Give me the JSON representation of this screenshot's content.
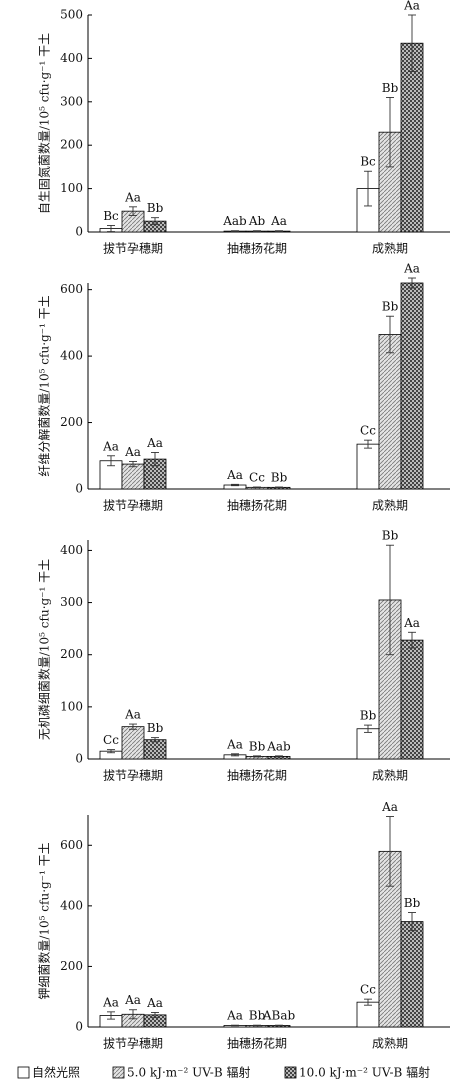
{
  "chart_data": [
    {
      "type": "bar",
      "ylabel": "自生固氮菌数量/10⁵ cfu·g⁻¹ 干土",
      "categories": [
        "拔节孕穗期",
        "抽穗扬花期",
        "成熟期"
      ],
      "ylim": [
        0,
        500
      ],
      "yticks": [
        0,
        100,
        200,
        300,
        400,
        500
      ],
      "series": [
        {
          "values": [
            8,
            2,
            100
          ],
          "errors": [
            7,
            1,
            40
          ],
          "significance": [
            "Bc",
            "Aab",
            "Bc"
          ]
        },
        {
          "values": [
            48,
            2,
            230
          ],
          "errors": [
            10,
            1,
            80
          ],
          "significance": [
            "Aa",
            "Ab",
            "Bb"
          ]
        },
        {
          "values": [
            25,
            2,
            435
          ],
          "errors": [
            8,
            1,
            65
          ],
          "significance": [
            "Bb",
            "Aa",
            "Aa"
          ]
        }
      ]
    },
    {
      "type": "bar",
      "ylabel": "纤维分解菌数量/10⁵ cfu·g⁻¹ 干土",
      "categories": [
        "拔节孕穗期",
        "抽穗扬花期",
        "成熟期"
      ],
      "ylim": [
        0,
        620
      ],
      "yticks": [
        0,
        200,
        400,
        600
      ],
      "series": [
        {
          "values": [
            85,
            12,
            135
          ],
          "errors": [
            15,
            2,
            12
          ],
          "significance": [
            "Aa",
            "Aa",
            "Cc"
          ]
        },
        {
          "values": [
            75,
            5,
            465
          ],
          "errors": [
            8,
            1,
            55
          ],
          "significance": [
            "Aa",
            "Cc",
            "Bb"
          ]
        },
        {
          "values": [
            90,
            5,
            620
          ],
          "errors": [
            20,
            1,
            15
          ],
          "significance": [
            "Aa",
            "Bb",
            "Aa"
          ]
        }
      ]
    },
    {
      "type": "bar",
      "ylabel": "无机磷细菌数量/10⁵ cfu·g⁻¹ 干土",
      "categories": [
        "拔节孕穗期",
        "抽穗扬花期",
        "成熟期"
      ],
      "ylim": [
        0,
        420
      ],
      "yticks": [
        0,
        100,
        200,
        300,
        400
      ],
      "series": [
        {
          "values": [
            15,
            8,
            58
          ],
          "errors": [
            3,
            2,
            7
          ],
          "significance": [
            "Cc",
            "Aa",
            "Bb"
          ]
        },
        {
          "values": [
            62,
            5,
            305
          ],
          "errors": [
            5,
            1,
            105
          ],
          "significance": [
            "Aa",
            "Bb",
            "Bb"
          ]
        },
        {
          "values": [
            37,
            5,
            228
          ],
          "errors": [
            4,
            1,
            15
          ],
          "significance": [
            "Bb",
            "Aab",
            "Aa"
          ]
        }
      ]
    },
    {
      "type": "bar",
      "ylabel": "钾细菌数量/10⁵ cfu·g⁻¹ 干土",
      "categories": [
        "拔节孕穗期",
        "抽穗扬花期",
        "成熟期"
      ],
      "ylim": [
        0,
        700
      ],
      "yticks": [
        0,
        200,
        400,
        600
      ],
      "series": [
        {
          "values": [
            38,
            5,
            82
          ],
          "errors": [
            12,
            1,
            10
          ],
          "significance": [
            "Aa",
            "Aa",
            "Cc"
          ]
        },
        {
          "values": [
            42,
            5,
            580
          ],
          "errors": [
            15,
            1,
            115
          ],
          "significance": [
            "Aa",
            "Bb",
            "Aa"
          ]
        },
        {
          "values": [
            40,
            5,
            348
          ],
          "errors": [
            8,
            1,
            30
          ],
          "significance": [
            "Aa",
            "ABab",
            "Bb"
          ]
        }
      ]
    }
  ],
  "legend": [
    {
      "name": "自然光照",
      "pattern": "none"
    },
    {
      "name": "5.0 kJ·m⁻² UV-B 辐射",
      "pattern": "hatch"
    },
    {
      "name": "10.0 kJ·m⁻² UV-B 辐射",
      "pattern": "checker"
    }
  ]
}
